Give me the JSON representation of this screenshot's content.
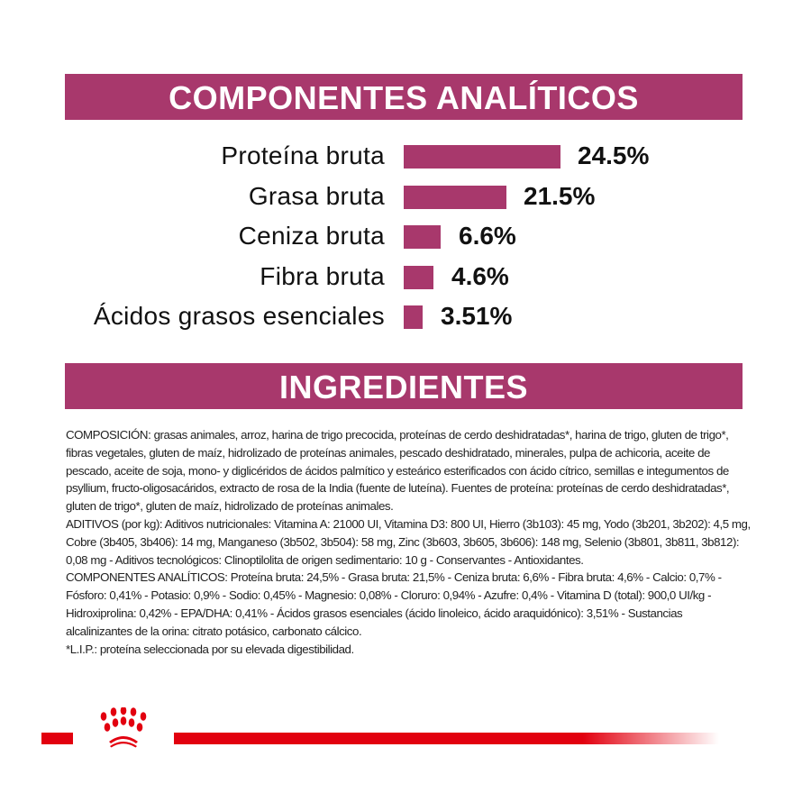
{
  "analytics": {
    "title": "COMPONENTES ANALÍTICOS",
    "rows": [
      {
        "label": "Proteína bruta",
        "value": "24.5%",
        "percent": 24.5
      },
      {
        "label": "Grasa bruta",
        "value": "21.5%",
        "percent": 21.5
      },
      {
        "label": "Ceniza bruta",
        "value": "6.6%",
        "percent": 6.6
      },
      {
        "label": "Fibra bruta",
        "value": "4.6%",
        "percent": 4.6
      },
      {
        "label": "Ácidos grasos esenciales",
        "value": "3.51%",
        "percent": 3.51
      }
    ],
    "bar_color": "#a8386c"
  },
  "ingredients": {
    "title": "INGREDIENTES",
    "composition": "COMPOSICIÓN: grasas animales, arroz, harina de trigo precocida, proteínas de cerdo deshidratadas*, harina de trigo, gluten de trigo*, fibras vegetales, gluten de maíz, hidrolizado de proteínas animales, pescado deshidratado, minerales, pulpa de achicoria, aceite de pescado, aceite de soja, mono- y diglicéridos de ácidos palmítico y esteárico esterificados con ácido cítrico, semillas e integumentos de psyllium, fructo-oligosacáridos, extracto de rosa de la India (fuente de luteína). Fuentes de proteína: proteínas de cerdo deshidratadas*, gluten de trigo*, gluten de maíz, hidrolizado de proteínas animales.",
    "additives": "ADITIVOS (por kg): Aditivos nutricionales: Vitamina A: 21000 UI, Vitamina D3: 800 UI, Hierro (3b103): 45 mg, Yodo (3b201, 3b202): 4,5 mg, Cobre (3b405, 3b406): 14 mg, Manganeso (3b502, 3b504): 58 mg, Zinc (3b603, 3b605, 3b606): 148 mg, Selenio (3b801, 3b811, 3b812): 0,08 mg - Aditivos tecnológicos: Clinoptilolita de origen sedimentario: 10 g - Conservantes - Antioxidantes.",
    "analytical": "COMPONENTES ANALÍTICOS: Proteína bruta: 24,5% - Grasa bruta: 21,5% - Ceniza bruta: 6,6% - Fibra bruta: 4,6% - Calcio: 0,7% - Fósforo: 0,41% - Potasio: 0,9% - Sodio: 0,45% - Magnesio: 0,08% - Cloruro: 0,94% - Azufre: 0,4% - Vitamina D (total): 900,0 UI/kg - Hidroxiprolina: 0,42% - EPA/DHA: 0,41% - Ácidos grasos esenciales (ácido linoleico, ácido araquidónico): 3,51% - Sustancias alcalinizantes de la orina: citrato potásico, carbonato cálcico.",
    "footnote": "*L.I.P.: proteína seleccionada por su elevada digestibilidad."
  },
  "colors": {
    "accent": "#a8386c",
    "brand_red": "#e2000f"
  }
}
